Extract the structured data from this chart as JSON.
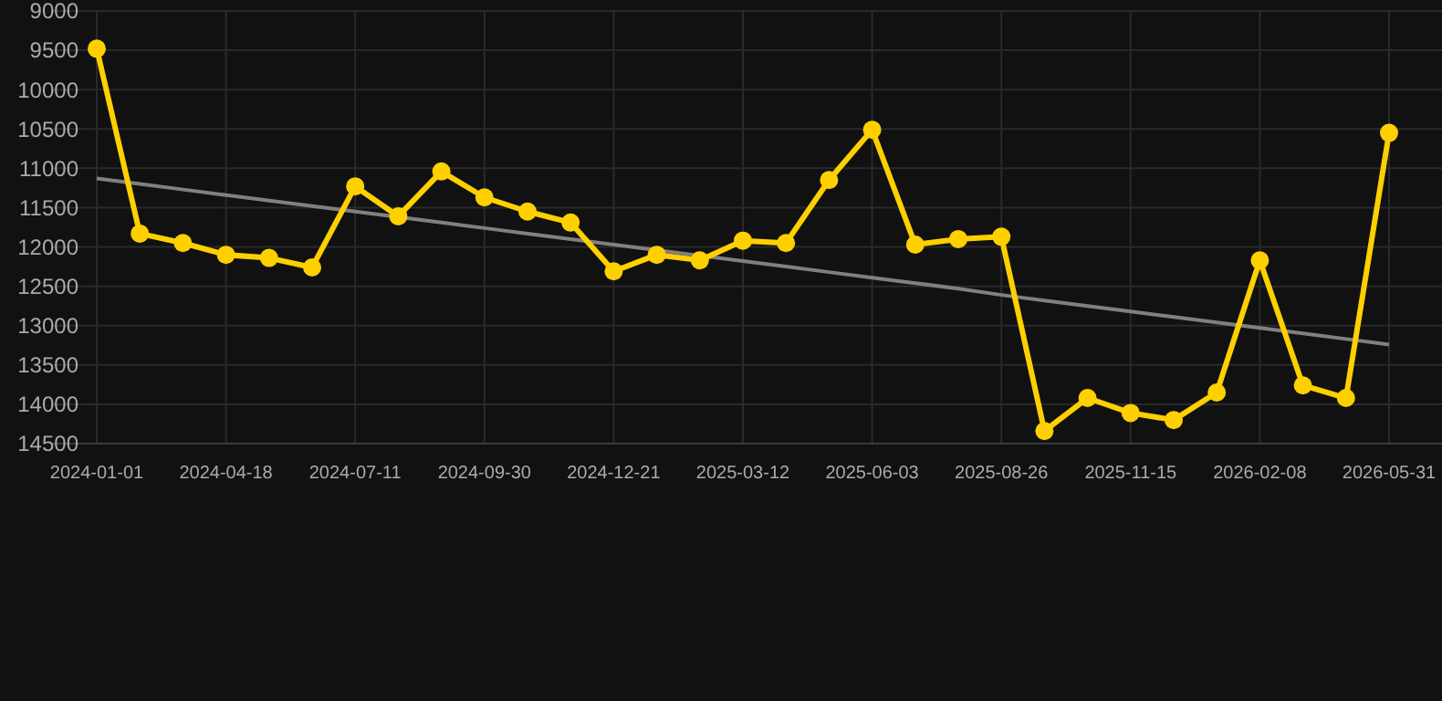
{
  "chart_data": {
    "type": "line",
    "categories": [
      "2024-01-01",
      null,
      null,
      "2024-04-18",
      null,
      null,
      "2024-07-11",
      null,
      null,
      "2024-09-30",
      null,
      null,
      "2024-12-21",
      null,
      null,
      "2025-03-12",
      null,
      null,
      "2025-06-03",
      null,
      null,
      "2025-08-26",
      null,
      null,
      "2025-11-15",
      null,
      null,
      "2026-02-08",
      null,
      null,
      "2026-05-31"
    ],
    "series": [
      {
        "color": "#ffd000",
        "marker": "circle",
        "values": [
          9480,
          11830,
          11950,
          12100,
          12140,
          12260,
          11230,
          11610,
          11040,
          11370,
          11550,
          11690,
          12310,
          12100,
          12170,
          11920,
          11950,
          11150,
          10510,
          11970,
          11900,
          11870,
          14340,
          13920,
          14110,
          14200,
          13850,
          12170,
          13760,
          13920,
          10550
        ]
      },
      {
        "type": "line",
        "color": "#808080",
        "marker": "none",
        "values": [
          11130,
          11200,
          11270,
          11340,
          11410,
          11480,
          11550,
          11620,
          11690,
          11760,
          11830,
          11900,
          11970,
          12040,
          12110,
          12180,
          12250,
          12320,
          12390,
          12460,
          12530,
          12610,
          12680,
          12750,
          12820,
          12890,
          12960,
          13030,
          13100,
          13170,
          13240
        ]
      }
    ],
    "ylim": [
      14500,
      9000
    ],
    "yticks": [
      9000,
      9500,
      10000,
      10500,
      11000,
      11500,
      12000,
      12500,
      13000,
      13500,
      14000,
      14500
    ],
    "grid": true
  }
}
